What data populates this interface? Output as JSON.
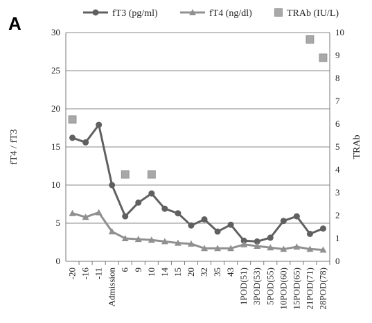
{
  "panel_label": "A",
  "chart_data": {
    "type": "line",
    "categories": [
      "-20",
      "-16",
      "-11",
      "Admission",
      "6",
      "9",
      "10",
      "14",
      "15",
      "20",
      "32",
      "35",
      "43",
      "1POD(51)",
      "3POD(53)",
      "5POD(55)",
      "10POD(60)",
      "15POD(65)",
      "21POD(71)",
      "28POD(78)"
    ],
    "ylabel": "fT4 / fT3",
    "y2label": "TRAb",
    "ylim": [
      0,
      30
    ],
    "y2lim": [
      0,
      10
    ],
    "yticks": [
      "0",
      "5",
      "10",
      "15",
      "20",
      "25",
      "30"
    ],
    "y2ticks": [
      "0",
      "1",
      "2",
      "3",
      "4",
      "5",
      "6",
      "7",
      "8",
      "9",
      "10"
    ],
    "grid": true,
    "legend_position": "top",
    "series": [
      {
        "name": "fT3 (pg/ml)",
        "axis": "left",
        "marker": "circle",
        "color": "#606060",
        "values": [
          16.2,
          15.6,
          17.9,
          10.0,
          5.9,
          7.7,
          8.9,
          6.9,
          6.3,
          4.7,
          5.5,
          3.9,
          4.8,
          2.7,
          2.6,
          3.1,
          5.3,
          5.9,
          3.6,
          4.3
        ]
      },
      {
        "name": "fT4 (ng/dl)",
        "axis": "left",
        "marker": "triangle",
        "color": "#909090",
        "values": [
          6.3,
          5.8,
          6.4,
          3.9,
          3.0,
          2.9,
          2.8,
          2.6,
          2.4,
          2.3,
          1.7,
          1.7,
          1.7,
          2.2,
          2.0,
          1.8,
          1.6,
          1.9,
          1.6,
          1.5
        ]
      },
      {
        "name": "TRAb (IU/L)",
        "axis": "right",
        "marker": "square",
        "color": "#a8a8a8",
        "points": [
          {
            "category": "-20",
            "value": 6.2
          },
          {
            "category": "6",
            "value": 3.8
          },
          {
            "category": "10",
            "value": 3.8
          },
          {
            "category": "21POD(71)",
            "value": 9.7
          },
          {
            "category": "28POD(78)",
            "value": 8.9
          }
        ]
      }
    ]
  }
}
